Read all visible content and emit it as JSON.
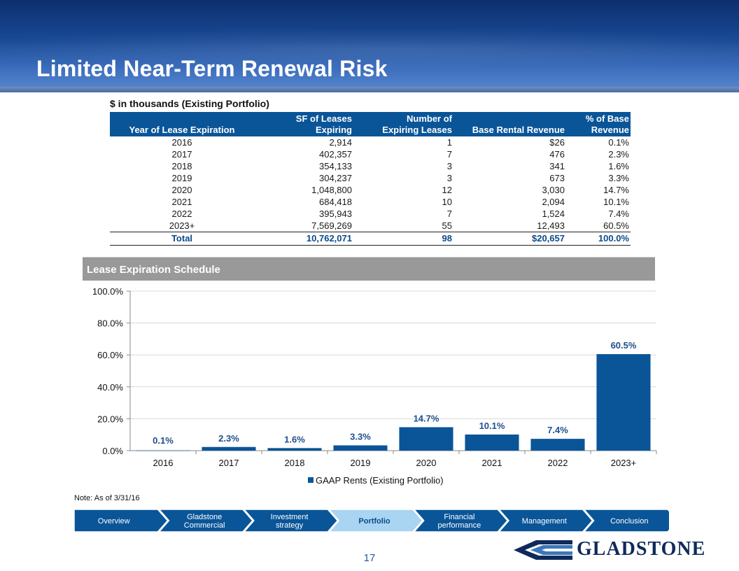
{
  "page": {
    "title": "Limited Near-Term Renewal Risk",
    "subtitle": "$ in thousands (Existing Portfolio)",
    "note": "Note: As of 3/31/16",
    "page_number": "17"
  },
  "table": {
    "headers": {
      "year": "Year of Lease Expiration",
      "sf_line1": "SF of Leases",
      "sf_line2": "Expiring",
      "num_line1": "Number of",
      "num_line2": "Expiring Leases",
      "rev": "Base Rental Revenue",
      "pct_line1": "% of Base",
      "pct_line2": "Revenue"
    },
    "rows": [
      {
        "year": "2016",
        "sf": "2,914",
        "num": "1",
        "rev": "$26",
        "pct": "0.1%"
      },
      {
        "year": "2017",
        "sf": "402,357",
        "num": "7",
        "rev": "476",
        "pct": "2.3%"
      },
      {
        "year": "2018",
        "sf": "354,133",
        "num": "3",
        "rev": "341",
        "pct": "1.6%"
      },
      {
        "year": "2019",
        "sf": "304,237",
        "num": "3",
        "rev": "673",
        "pct": "3.3%"
      },
      {
        "year": "2020",
        "sf": "1,048,800",
        "num": "12",
        "rev": "3,030",
        "pct": "14.7%"
      },
      {
        "year": "2021",
        "sf": "684,418",
        "num": "10",
        "rev": "2,094",
        "pct": "10.1%"
      },
      {
        "year": "2022",
        "sf": "395,943",
        "num": "7",
        "rev": "1,524",
        "pct": "7.4%"
      },
      {
        "year": "2023+",
        "sf": "7,569,269",
        "num": "55",
        "rev": "12,493",
        "pct": "60.5%"
      }
    ],
    "total": {
      "year": "Total",
      "sf": "10,762,071",
      "num": "98",
      "rev": "$20,657",
      "pct": "100.0%"
    }
  },
  "chart_section": {
    "header": "Lease Expiration Schedule"
  },
  "chart_data": {
    "type": "bar",
    "title": "Lease Expiration Schedule",
    "categories": [
      "2016",
      "2017",
      "2018",
      "2019",
      "2020",
      "2021",
      "2022",
      "2023+"
    ],
    "series": [
      {
        "name": "GAAP Rents (Existing Portfolio)",
        "values": [
          0.1,
          2.3,
          1.6,
          3.3,
          14.7,
          10.1,
          7.4,
          60.5
        ]
      }
    ],
    "data_labels": [
      "0.1%",
      "2.3%",
      "1.6%",
      "3.3%",
      "14.7%",
      "10.1%",
      "7.4%",
      "60.5%"
    ],
    "y_ticks": [
      "0.0%",
      "20.0%",
      "40.0%",
      "60.0%",
      "80.0%",
      "100.0%"
    ],
    "ylim": [
      0,
      100
    ],
    "xlabel": "",
    "ylabel": "",
    "grid": true,
    "legend": "bottom",
    "bar_color": "#0a5598",
    "label_color": "#1f4e8c"
  },
  "nav": {
    "items": [
      {
        "line1": "Overview",
        "line2": "",
        "active": false
      },
      {
        "line1": "Gladstone",
        "line2": "Commercial",
        "active": false
      },
      {
        "line1": "Investment",
        "line2": "strategy",
        "active": false
      },
      {
        "line1": "Portfolio",
        "line2": "",
        "active": true
      },
      {
        "line1": "Financial",
        "line2": "performance",
        "active": false
      },
      {
        "line1": "Management",
        "line2": "",
        "active": false
      },
      {
        "line1": "Conclusion",
        "line2": "",
        "active": false
      }
    ],
    "colors": {
      "fill": "#0a5598",
      "active_fill": "#a9d4f2",
      "text": "#ffffff",
      "active_text": "#0a4a8c"
    }
  },
  "logo": {
    "text": "GLADSTONE",
    "icon": "gladstone-emblem-icon"
  }
}
